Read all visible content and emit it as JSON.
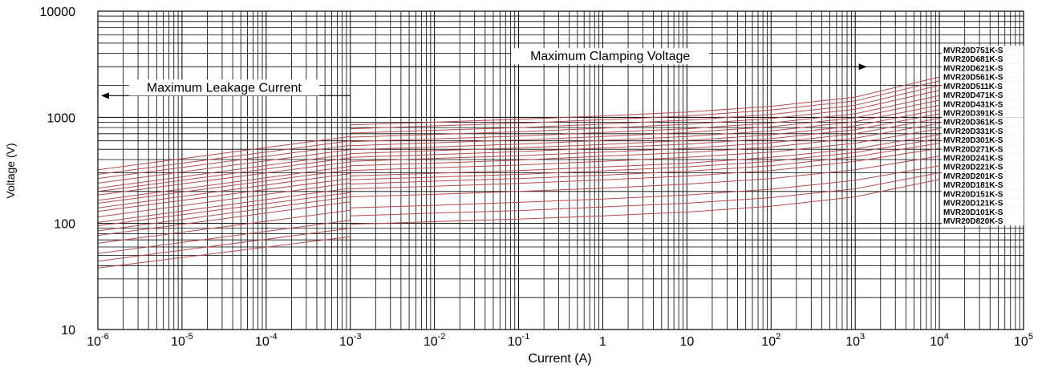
{
  "chart_data": {
    "type": "line",
    "xlabel": "Current (A)",
    "ylabel": "Voltage (V)",
    "xscale": "log",
    "yscale": "log",
    "xlim": [
      1e-06,
      100000
    ],
    "ylim": [
      10,
      10000
    ],
    "grid": true,
    "legend_placement": "right",
    "line_color": "#b84a4a",
    "x_ticks": [
      {
        "base": "10",
        "exp": "-6"
      },
      {
        "base": "10",
        "exp": "-5"
      },
      {
        "base": "10",
        "exp": "-4"
      },
      {
        "base": "10",
        "exp": "-3"
      },
      {
        "base": "10",
        "exp": "-2"
      },
      {
        "base": "10",
        "exp": "-1"
      },
      {
        "base": "1",
        "exp": ""
      },
      {
        "base": "10",
        "exp": ""
      },
      {
        "base": "10",
        "exp": "2"
      },
      {
        "base": "10",
        "exp": "3"
      },
      {
        "base": "10",
        "exp": "4"
      },
      {
        "base": "10",
        "exp": "5"
      }
    ],
    "y_ticks": [
      "10",
      "100",
      "1000",
      "10000"
    ],
    "annotations": [
      {
        "text": "Maximum Leakage Current",
        "direction": "left",
        "x_from": 0.001,
        "x_to": 1e-06,
        "y": 1600
      },
      {
        "text": "Maximum Clamping Voltage",
        "direction": "right",
        "x_from": 0.001,
        "x_to": 1500,
        "y": 3000
      }
    ],
    "leakage_x": [
      1e-06,
      0.001
    ],
    "clamping_x": [
      0.001,
      0.01,
      0.1,
      1,
      10,
      100,
      1000,
      10000
    ],
    "series": [
      {
        "name": "MVR20D751K-S",
        "leakage": [
          320,
          660
        ],
        "clamping": [
          850,
          900,
          960,
          1030,
          1120,
          1270,
          1550,
          2400
        ]
      },
      {
        "name": "MVR20D681K-S",
        "leakage": [
          290,
          600
        ],
        "clamping": [
          780,
          830,
          880,
          950,
          1030,
          1170,
          1430,
          2200
        ]
      },
      {
        "name": "MVR20D621K-S",
        "leakage": [
          265,
          545
        ],
        "clamping": [
          710,
          755,
          800,
          865,
          940,
          1065,
          1300,
          2000
        ]
      },
      {
        "name": "MVR20D561K-S",
        "leakage": [
          240,
          495
        ],
        "clamping": [
          650,
          690,
          730,
          790,
          860,
          975,
          1190,
          1800
        ]
      },
      {
        "name": "MVR20D511K-S",
        "leakage": [
          215,
          450
        ],
        "clamping": [
          590,
          625,
          665,
          720,
          780,
          885,
          1080,
          1600
        ]
      },
      {
        "name": "MVR20D471K-S",
        "leakage": [
          200,
          415
        ],
        "clamping": [
          540,
          575,
          610,
          660,
          720,
          815,
          990,
          1450
        ]
      },
      {
        "name": "MVR20D431K-S",
        "leakage": [
          185,
          380
        ],
        "clamping": [
          495,
          525,
          560,
          605,
          660,
          745,
          910,
          1300
        ]
      },
      {
        "name": "MVR20D391K-S",
        "leakage": [
          165,
          345
        ],
        "clamping": [
          455,
          485,
          515,
          555,
          605,
          685,
          830,
          1180
        ]
      },
      {
        "name": "MVR20D361K-S",
        "leakage": [
          155,
          320
        ],
        "clamping": [
          420,
          445,
          475,
          515,
          560,
          630,
          765,
          1080
        ]
      },
      {
        "name": "MVR20D331K-S",
        "leakage": [
          140,
          295
        ],
        "clamping": [
          385,
          410,
          435,
          470,
          510,
          575,
          700,
          980
        ]
      },
      {
        "name": "MVR20D301K-S",
        "leakage": [
          130,
          265
        ],
        "clamping": [
          350,
          370,
          395,
          430,
          465,
          525,
          635,
          880
        ]
      },
      {
        "name": "MVR20D271K-S",
        "leakage": [
          115,
          240
        ],
        "clamping": [
          315,
          335,
          355,
          385,
          420,
          470,
          570,
          780
        ]
      },
      {
        "name": "MVR20D241K-S",
        "leakage": [
          102,
          215
        ],
        "clamping": [
          280,
          297,
          315,
          340,
          370,
          420,
          505,
          690
        ]
      },
      {
        "name": "MVR20D221K-S",
        "leakage": [
          95,
          195
        ],
        "clamping": [
          258,
          273,
          290,
          313,
          340,
          385,
          465,
          630
        ]
      },
      {
        "name": "MVR20D201K-S",
        "leakage": [
          85,
          178
        ],
        "clamping": [
          235,
          250,
          265,
          285,
          310,
          350,
          425,
          570
        ]
      },
      {
        "name": "MVR20D181K-S",
        "leakage": [
          77,
          160
        ],
        "clamping": [
          212,
          224,
          238,
          257,
          280,
          315,
          385,
          510
        ]
      },
      {
        "name": "MVR20D151K-S",
        "leakage": [
          65,
          133
        ],
        "clamping": [
          178,
          188,
          200,
          215,
          235,
          265,
          320,
          430
        ]
      },
      {
        "name": "MVR20D121K-S",
        "leakage": [
          52,
          107
        ],
        "clamping": [
          140,
          148,
          158,
          170,
          185,
          210,
          255,
          350
        ]
      },
      {
        "name": "MVR20D101K-S",
        "leakage": [
          44,
          90
        ],
        "clamping": [
          118,
          125,
          132,
          143,
          155,
          175,
          212,
          300
        ]
      },
      {
        "name": "MVR20D820K-S",
        "leakage": [
          38,
          75
        ],
        "clamping": [
          98,
          104,
          110,
          118,
          128,
          145,
          178,
          260
        ]
      }
    ]
  }
}
